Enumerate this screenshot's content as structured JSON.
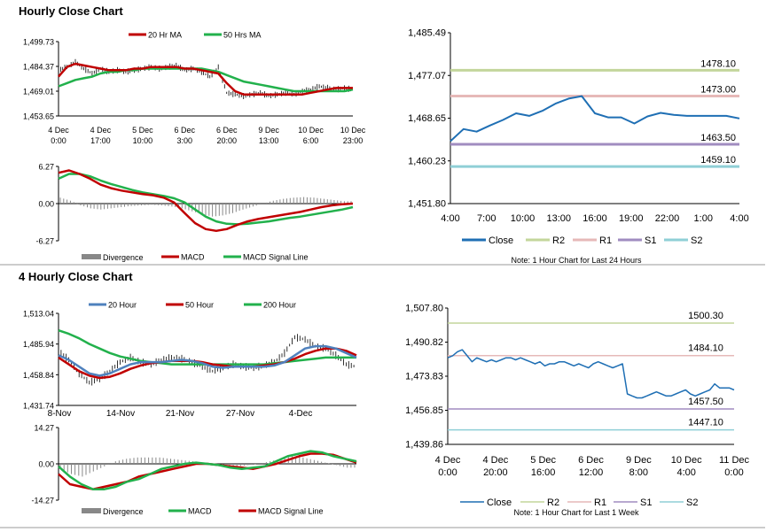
{
  "sections": {
    "hourly_title": "Hourly Close Chart",
    "four_hourly_title": "4 Hourly Close Chart"
  },
  "colors": {
    "red": "#c00000",
    "green": "#22b14c",
    "blue": "#1f6fb4",
    "steelblue": "#4f81bd",
    "r2": "#c3d69b",
    "r1": "#e6b9b8",
    "s1": "#a08cc0",
    "s2": "#8fcfd6",
    "bars": "#888888",
    "price": "#000000"
  },
  "chart_data": [
    {
      "id": "hourly_price",
      "type": "line",
      "legend": [
        "20 Hr MA",
        "50 Hrs MA"
      ],
      "yticks": [
        "1,499.73",
        "1,484.37",
        "1,469.01",
        "1,453.65"
      ],
      "ylim": [
        1453.65,
        1499.73
      ],
      "xticks": [
        [
          "4 Dec",
          "0:00"
        ],
        [
          "4 Dec",
          "17:00"
        ],
        [
          "5 Dec",
          "10:00"
        ],
        [
          "6 Dec",
          "3:00"
        ],
        [
          "6 Dec",
          "20:00"
        ],
        [
          "9 Dec",
          "13:00"
        ],
        [
          "10 Dec",
          "6:00"
        ],
        [
          "10 Dec",
          "23:00"
        ]
      ],
      "series": [
        {
          "name": "Price",
          "values": [
            1482,
            1484,
            1487,
            1483,
            1480,
            1483,
            1481,
            1482,
            1481,
            1482,
            1483,
            1484,
            1483,
            1484,
            1485,
            1482,
            1483,
            1481,
            1478,
            1484,
            1468,
            1467,
            1466,
            1467,
            1468,
            1466,
            1467,
            1468,
            1467,
            1469,
            1470,
            1472,
            1471,
            1470,
            1471,
            1470
          ]
        },
        {
          "name": "20 Hr MA",
          "values": [
            1478,
            1484,
            1486,
            1485,
            1484,
            1483,
            1482,
            1482,
            1482,
            1483,
            1483,
            1484,
            1484,
            1484,
            1484,
            1483,
            1483,
            1482,
            1481,
            1480,
            1474,
            1469,
            1467,
            1467,
            1467,
            1467,
            1467,
            1467,
            1467,
            1467,
            1468,
            1469,
            1470,
            1471,
            1471,
            1471
          ]
        },
        {
          "name": "50 Hrs MA",
          "values": [
            1472,
            1474,
            1476,
            1477,
            1478,
            1480,
            1481,
            1481,
            1482,
            1482,
            1483,
            1483,
            1483,
            1483,
            1483,
            1483,
            1483,
            1483,
            1482,
            1481,
            1479,
            1477,
            1475,
            1474,
            1473,
            1472,
            1471,
            1470,
            1469,
            1469,
            1469,
            1469,
            1469,
            1469,
            1469,
            1470
          ]
        }
      ]
    },
    {
      "id": "hourly_macd",
      "type": "line",
      "legend": [
        "Divergence",
        "MACD",
        "MACD Signal Line"
      ],
      "yticks": [
        "6.27",
        "0.00",
        "-6.27"
      ],
      "ylim": [
        -6.27,
        6.27
      ],
      "series": [
        {
          "name": "Divergence",
          "values": [
            1.0,
            0.5,
            -0.3,
            -0.8,
            -1.0,
            -0.8,
            -0.6,
            -0.4,
            -0.3,
            -0.2,
            -0.3,
            -0.5,
            -0.8,
            -1.3,
            -1.8,
            -2.2,
            -2.0,
            -1.6,
            -1.0,
            -0.5,
            0.0,
            0.5,
            0.8,
            1.0,
            1.1,
            1.0,
            0.8,
            0.6,
            0.4
          ]
        },
        {
          "name": "MACD",
          "values": [
            5.2,
            5.6,
            5.0,
            4.2,
            3.2,
            2.6,
            2.2,
            1.9,
            1.6,
            1.4,
            1.0,
            0.2,
            -1.6,
            -3.3,
            -4.3,
            -4.6,
            -4.3,
            -3.6,
            -3.0,
            -2.6,
            -2.3,
            -2.0,
            -1.7,
            -1.4,
            -1.0,
            -0.6,
            -0.3,
            -0.1,
            0.0
          ]
        },
        {
          "name": "MACD Signal Line",
          "values": [
            4.2,
            5.0,
            5.0,
            4.6,
            3.9,
            3.3,
            2.8,
            2.3,
            1.9,
            1.6,
            1.3,
            0.9,
            0.2,
            -1.0,
            -2.2,
            -3.0,
            -3.4,
            -3.5,
            -3.4,
            -3.2,
            -3.0,
            -2.7,
            -2.4,
            -2.2,
            -1.9,
            -1.6,
            -1.3,
            -1.0,
            -0.6
          ]
        }
      ]
    },
    {
      "id": "hourly_pivot",
      "type": "line",
      "legend": [
        "Close",
        "R2",
        "R1",
        "S1",
        "S2"
      ],
      "note": "Note: 1 Hour Chart for Last 24 Hours",
      "yticks": [
        "1,485.49",
        "1,477.07",
        "1,468.65",
        "1,460.23",
        "1,451.80"
      ],
      "ylim": [
        1451.8,
        1485.49
      ],
      "xticks": [
        "4:00",
        "7:00",
        "10:00",
        "13:00",
        "16:00",
        "19:00",
        "22:00",
        "1:00",
        "4:00"
      ],
      "levels": [
        {
          "name": "R2",
          "value": 1478.1,
          "label": "1478.10"
        },
        {
          "name": "R1",
          "value": 1473.0,
          "label": "1473.00"
        },
        {
          "name": "S1",
          "value": 1463.5,
          "label": "1463.50"
        },
        {
          "name": "S2",
          "value": 1459.1,
          "label": "1459.10"
        }
      ],
      "series": [
        {
          "name": "Close",
          "values": [
            1464.1,
            1466.5,
            1466.0,
            1467.2,
            1468.3,
            1469.6,
            1469.1,
            1470.1,
            1471.5,
            1472.5,
            1473.0,
            1469.6,
            1468.8,
            1468.8,
            1467.6,
            1469.0,
            1469.7,
            1469.3,
            1469.1,
            1469.1,
            1469.1,
            1469.1,
            1468.6
          ]
        }
      ]
    },
    {
      "id": "four_hourly_price",
      "type": "line",
      "legend": [
        "20 Hour",
        "50 Hour",
        "200 Hour"
      ],
      "yticks": [
        "1,513.04",
        "1,485.94",
        "1,458.84",
        "1,431.74"
      ],
      "ylim": [
        1431.74,
        1513.04
      ],
      "xticks": [
        "8-Nov",
        "14-Nov",
        "21-Nov",
        "27-Nov",
        "4-Dec"
      ],
      "series": [
        {
          "name": "Price",
          "values": [
            1480,
            1472,
            1460,
            1452,
            1455,
            1462,
            1470,
            1474,
            1470,
            1468,
            1472,
            1474,
            1473,
            1470,
            1466,
            1462,
            1465,
            1468,
            1466,
            1465,
            1467,
            1470,
            1478,
            1492,
            1490,
            1484,
            1482,
            1476,
            1468,
            1466
          ]
        },
        {
          "name": "20 Hour",
          "values": [
            1476,
            1472,
            1466,
            1460,
            1458,
            1460,
            1464,
            1468,
            1470,
            1470,
            1470,
            1471,
            1472,
            1471,
            1469,
            1466,
            1465,
            1466,
            1466,
            1466,
            1466,
            1467,
            1470,
            1476,
            1482,
            1484,
            1484,
            1482,
            1478,
            1474
          ]
        },
        {
          "name": "50 Hour",
          "values": [
            1474,
            1468,
            1462,
            1458,
            1456,
            1457,
            1460,
            1464,
            1467,
            1469,
            1470,
            1471,
            1471,
            1471,
            1470,
            1468,
            1467,
            1466,
            1466,
            1466,
            1467,
            1468,
            1470,
            1473,
            1477,
            1480,
            1482,
            1482,
            1480,
            1476
          ]
        },
        {
          "name": "200 Hour",
          "values": [
            1498,
            1495,
            1491,
            1486,
            1482,
            1478,
            1475,
            1473,
            1471,
            1470,
            1469,
            1468,
            1468,
            1468,
            1468,
            1468,
            1468,
            1468,
            1468,
            1468,
            1468,
            1469,
            1470,
            1471,
            1472,
            1473,
            1474,
            1474,
            1474,
            1474
          ]
        }
      ]
    },
    {
      "id": "four_hourly_macd",
      "type": "line",
      "legend": [
        "Divergence",
        "MACD",
        "MACD Signal Line"
      ],
      "yticks": [
        "14.27",
        "0.00",
        "-14.27"
      ],
      "ylim": [
        -14.27,
        14.27
      ],
      "series": [
        {
          "name": "Divergence",
          "values": [
            -2,
            -4,
            -5,
            -3,
            -1,
            1,
            2,
            2.5,
            2.5,
            2.5,
            2,
            1.5,
            1,
            0.5,
            0,
            -0.5,
            -1,
            -0.5,
            0,
            1,
            2,
            3,
            2.5,
            1.5,
            0.5,
            -0.5,
            -1.5
          ]
        },
        {
          "name": "MACD",
          "values": [
            -1,
            -5,
            -8,
            -10,
            -10,
            -9,
            -7,
            -6,
            -4,
            -2,
            -1,
            0,
            0.5,
            0,
            -0.5,
            -1.5,
            -2,
            -1.5,
            -1,
            1,
            3,
            4,
            5,
            4.5,
            3,
            2,
            1
          ]
        },
        {
          "name": "MACD Signal Line",
          "values": [
            -4,
            -8,
            -9,
            -10,
            -9,
            -8,
            -7,
            -5,
            -4,
            -3,
            -2,
            -1,
            0,
            0,
            -0.5,
            -1,
            -1.5,
            -2,
            -1,
            0,
            1.5,
            3,
            4,
            4,
            3.5,
            2,
            0.5
          ]
        }
      ]
    },
    {
      "id": "four_hourly_pivot",
      "type": "line",
      "legend": [
        "Close",
        "R2",
        "R1",
        "S1",
        "S2"
      ],
      "note": "Note: 1 Hour Chart for Last 1 Week",
      "yticks": [
        "1,507.80",
        "1,490.82",
        "1,473.83",
        "1,456.85",
        "1,439.86"
      ],
      "ylim": [
        1439.86,
        1507.8
      ],
      "xticks": [
        [
          "4 Dec",
          "0:00"
        ],
        [
          "4 Dec",
          "20:00"
        ],
        [
          "5 Dec",
          "16:00"
        ],
        [
          "6 Dec",
          "12:00"
        ],
        [
          "9 Dec",
          "8:00"
        ],
        [
          "10 Dec",
          "4:00"
        ],
        [
          "11 Dec",
          "0:00"
        ]
      ],
      "levels": [
        {
          "name": "R2",
          "value": 1500.3,
          "label": "1500.30"
        },
        {
          "name": "R1",
          "value": 1484.1,
          "label": "1484.10"
        },
        {
          "name": "S1",
          "value": 1457.5,
          "label": "1457.50"
        },
        {
          "name": "S2",
          "value": 1447.1,
          "label": "1447.10"
        }
      ],
      "series": [
        {
          "name": "Close",
          "values": [
            1483,
            1484,
            1486,
            1487,
            1484,
            1481,
            1483,
            1482,
            1481,
            1482,
            1481,
            1482,
            1483,
            1483,
            1482,
            1483,
            1482,
            1481,
            1480,
            1481,
            1479,
            1480,
            1480,
            1481,
            1481,
            1480,
            1479,
            1480,
            1479,
            1478,
            1480,
            1481,
            1480,
            1479,
            1478,
            1479,
            1480,
            1465,
            1464,
            1463,
            1463,
            1464,
            1465,
            1466,
            1465,
            1464,
            1464,
            1465,
            1466,
            1467,
            1465,
            1464,
            1465,
            1466,
            1467,
            1470,
            1468,
            1468,
            1468,
            1467
          ]
        }
      ]
    }
  ]
}
